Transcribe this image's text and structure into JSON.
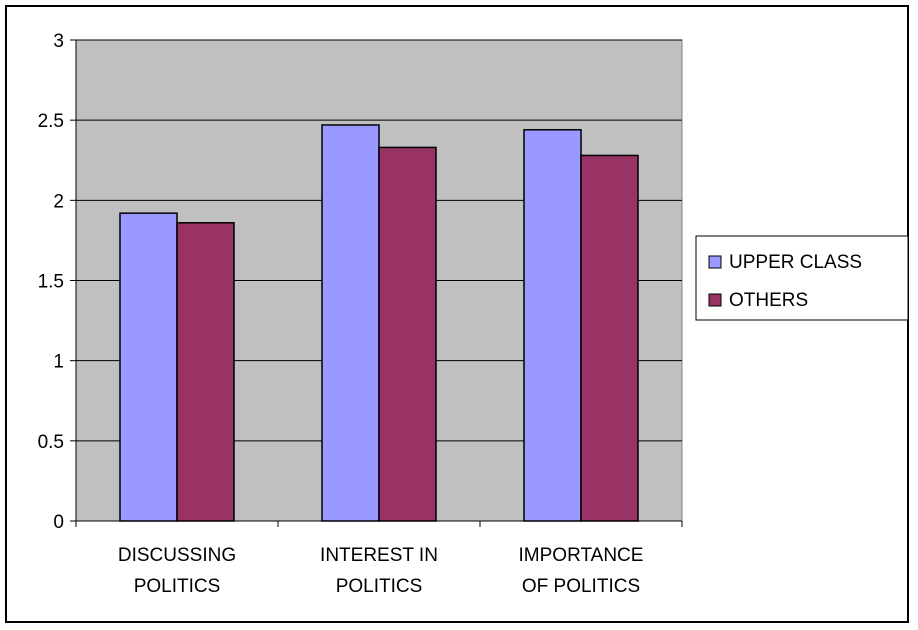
{
  "chart_data": {
    "type": "bar",
    "categories": [
      [
        "DISCUSSING",
        "POLITICS"
      ],
      [
        "INTEREST IN",
        "POLITICS"
      ],
      [
        "IMPORTANCE",
        "OF POLITICS"
      ]
    ],
    "series": [
      {
        "name": "UPPER CLASS",
        "values": [
          1.92,
          2.47,
          2.44
        ],
        "color": "#9999ff"
      },
      {
        "name": "OTHERS",
        "values": [
          1.86,
          2.33,
          2.28
        ],
        "color": "#993366"
      }
    ],
    "ylim": [
      0,
      3
    ],
    "yticks": [
      0,
      0.5,
      1,
      1.5,
      2,
      2.5,
      3
    ],
    "ytick_labels": [
      "0",
      "0.5",
      "1",
      "1.5",
      "2",
      "2.5",
      "3"
    ],
    "plot_background": "#c0c0c0",
    "grid": true,
    "legend": "right"
  }
}
